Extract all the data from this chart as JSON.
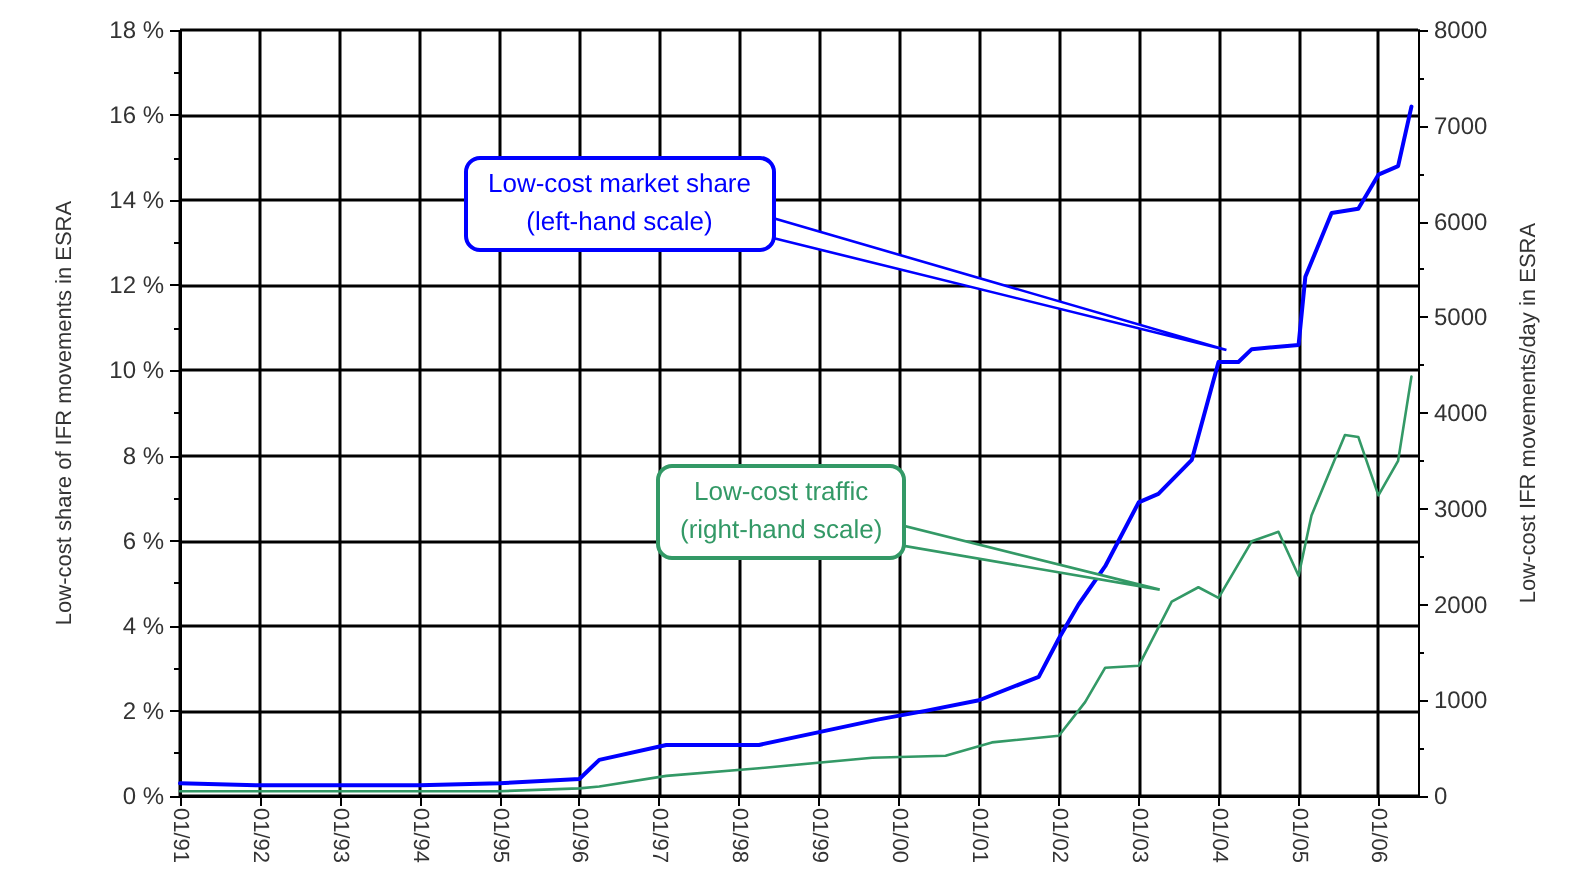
{
  "chart_data": {
    "type": "line",
    "ylabel": "Low-cost share of IFR movements in ESRA",
    "y2label": "Low-cost IFR movements/day in ESRA",
    "xlim": [
      "1991-01",
      "2006-07"
    ],
    "xticks": [
      {
        "value": "1991-01",
        "label": "01/91"
      },
      {
        "value": "1992-01",
        "label": "01/92"
      },
      {
        "value": "1993-01",
        "label": "01/93"
      },
      {
        "value": "1994-01",
        "label": "01/94"
      },
      {
        "value": "1995-01",
        "label": "01/95"
      },
      {
        "value": "1996-01",
        "label": "01/96"
      },
      {
        "value": "1997-01",
        "label": "01/97"
      },
      {
        "value": "1998-01",
        "label": "01/98"
      },
      {
        "value": "1999-01",
        "label": "01/99"
      },
      {
        "value": "2000-01",
        "label": "01/00"
      },
      {
        "value": "2001-01",
        "label": "01/01"
      },
      {
        "value": "2002-01",
        "label": "01/02"
      },
      {
        "value": "2003-01",
        "label": "01/03"
      },
      {
        "value": "2004-01",
        "label": "01/04"
      },
      {
        "value": "2005-01",
        "label": "01/05"
      },
      {
        "value": "2006-01",
        "label": "01/06"
      }
    ],
    "ylim": [
      0,
      18
    ],
    "yticks": [
      {
        "value": 0,
        "label": "0 %"
      },
      {
        "value": 2,
        "label": "2 %"
      },
      {
        "value": 4,
        "label": "4 %"
      },
      {
        "value": 6,
        "label": "6 %"
      },
      {
        "value": 8,
        "label": "8 %"
      },
      {
        "value": 10,
        "label": "10 %"
      },
      {
        "value": 12,
        "label": "12 %"
      },
      {
        "value": 14,
        "label": "14 %"
      },
      {
        "value": 16,
        "label": "16 %"
      },
      {
        "value": 18,
        "label": "18 %"
      }
    ],
    "y2lim": [
      0,
      8000
    ],
    "y2ticks": [
      0,
      1000,
      2000,
      3000,
      4000,
      5000,
      6000,
      7000,
      8000
    ],
    "grid": true,
    "legend": false,
    "series": [
      {
        "name": "Low-cost market share\n(left-hand scale)",
        "color": "#0000ff",
        "x": [
          "1991-01",
          "1992-01",
          "1993-01",
          "1994-01",
          "1995-01",
          "1996-01",
          "1996-04",
          "1997-02",
          "1998-04",
          "1999-01",
          "1999-10",
          "2000-05",
          "2001-01",
          "2001-10",
          "2002-01",
          "2002-04",
          "2002-08",
          "2003-01",
          "2003-04",
          "2003-09",
          "2004-01",
          "2004-04",
          "2004-06",
          "2005-01",
          "2005-02",
          "2005-06",
          "2005-10",
          "2006-01",
          "2006-04",
          "2006-06"
        ],
        "values": [
          0.3,
          0.25,
          0.25,
          0.25,
          0.3,
          0.4,
          0.85,
          1.2,
          1.2,
          1.5,
          1.8,
          2.0,
          2.25,
          2.8,
          3.7,
          4.5,
          5.4,
          6.9,
          7.1,
          7.9,
          10.2,
          10.2,
          10.5,
          10.6,
          12.2,
          13.7,
          13.8,
          14.6,
          14.8,
          16.2
        ]
      },
      {
        "name": "Low-cost traffic\n(right-hand scale)",
        "color": "#339966",
        "axis": "y2",
        "x": [
          "1991-01",
          "1993-01",
          "1995-01",
          "1996-01",
          "1996-04",
          "1997-02",
          "1998-04",
          "1999-09",
          "2000-08",
          "2001-03",
          "2002-01",
          "2002-05",
          "2002-08",
          "2003-01",
          "2003-06",
          "2003-10",
          "2004-01",
          "2004-06",
          "2004-10",
          "2005-01",
          "2005-03",
          "2005-08",
          "2005-10",
          "2006-01",
          "2006-04",
          "2006-06"
        ],
        "values": [
          50,
          50,
          50,
          80,
          100,
          210,
          290,
          400,
          420,
          560,
          630,
          980,
          1340,
          1360,
          2030,
          2180,
          2070,
          2660,
          2760,
          2300,
          2930,
          3770,
          3750,
          3140,
          3500,
          4380
        ]
      }
    ]
  }
}
